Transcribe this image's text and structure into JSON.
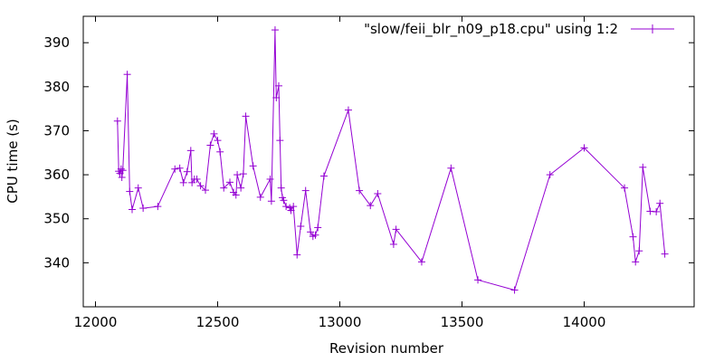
{
  "chart_data": {
    "type": "line",
    "title": "",
    "xlabel": "Revision number",
    "ylabel": "CPU time (s)",
    "xlim": [
      11950,
      14450
    ],
    "ylim": [
      330,
      396
    ],
    "xticks": [
      12000,
      12500,
      13000,
      13500,
      14000
    ],
    "yticks": [
      340,
      350,
      360,
      370,
      380,
      390
    ],
    "grid": false,
    "legend_position": "top-right",
    "series": [
      {
        "name": "\"slow/feii_blr_n09_p18.cpu\" using 1:2",
        "color": "#9400d3",
        "marker": "plus",
        "points": [
          [
            12090,
            372.2
          ],
          [
            12095,
            360.8
          ],
          [
            12100,
            360.3
          ],
          [
            12105,
            361.3
          ],
          [
            12108,
            359.4
          ],
          [
            12112,
            361.0
          ],
          [
            12130,
            382.8
          ],
          [
            12140,
            356.2
          ],
          [
            12150,
            352.1
          ],
          [
            12175,
            357.0
          ],
          [
            12195,
            352.4
          ],
          [
            12255,
            352.8
          ],
          [
            12325,
            361.3
          ],
          [
            12345,
            361.5
          ],
          [
            12360,
            358.2
          ],
          [
            12375,
            360.7
          ],
          [
            12390,
            365.5
          ],
          [
            12395,
            358.2
          ],
          [
            12405,
            359.0
          ],
          [
            12415,
            359.0
          ],
          [
            12430,
            357.5
          ],
          [
            12450,
            356.5
          ],
          [
            12470,
            366.7
          ],
          [
            12485,
            369.3
          ],
          [
            12500,
            367.8
          ],
          [
            12510,
            365.2
          ],
          [
            12525,
            357.0
          ],
          [
            12550,
            358.3
          ],
          [
            12565,
            356.0
          ],
          [
            12575,
            355.4
          ],
          [
            12580,
            360.0
          ],
          [
            12595,
            357.0
          ],
          [
            12605,
            360.2
          ],
          [
            12615,
            373.3
          ],
          [
            12645,
            362.0
          ],
          [
            12675,
            354.9
          ],
          [
            12715,
            359.0
          ],
          [
            12720,
            354.0
          ],
          [
            12735,
            392.9
          ],
          [
            12740,
            377.5
          ],
          [
            12750,
            380.2
          ],
          [
            12755,
            367.8
          ],
          [
            12760,
            357.0
          ],
          [
            12765,
            354.8
          ],
          [
            12770,
            354.2
          ],
          [
            12780,
            352.8
          ],
          [
            12795,
            352.5
          ],
          [
            12800,
            351.9
          ],
          [
            12810,
            352.8
          ],
          [
            12825,
            341.8
          ],
          [
            12840,
            348.3
          ],
          [
            12860,
            356.4
          ],
          [
            12880,
            347.0
          ],
          [
            12890,
            346.0
          ],
          [
            12900,
            346.3
          ],
          [
            12910,
            348.0
          ],
          [
            12935,
            359.7
          ],
          [
            13035,
            374.7
          ],
          [
            13080,
            356.4
          ],
          [
            13125,
            353.0
          ],
          [
            13155,
            355.7
          ],
          [
            13220,
            344.2
          ],
          [
            13230,
            347.6
          ],
          [
            13335,
            340.2
          ],
          [
            13455,
            361.5
          ],
          [
            13565,
            336.1
          ],
          [
            13715,
            333.8
          ],
          [
            13860,
            360.0
          ],
          [
            14000,
            366.1
          ],
          [
            14165,
            357.0
          ],
          [
            14200,
            345.9
          ],
          [
            14210,
            340.2
          ],
          [
            14225,
            342.7
          ],
          [
            14240,
            361.7
          ],
          [
            14270,
            351.7
          ],
          [
            14295,
            351.6
          ],
          [
            14310,
            353.5
          ],
          [
            14330,
            342.0
          ]
        ]
      }
    ]
  }
}
